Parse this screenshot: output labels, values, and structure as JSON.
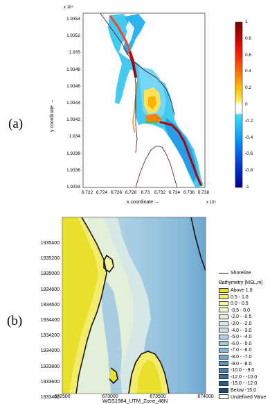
{
  "panel_a": {
    "label": "(a)",
    "exp_top": "x 10⁵",
    "exp_bottom": "x 10⁵",
    "xlabel": "x coordinate →",
    "ylabel": "y coordinate →",
    "yticks": [
      "1.9354",
      "1.9352",
      "1.935",
      "1.9348",
      "1.9346",
      "1.9344",
      "1.9342",
      "1.934",
      "1.9338",
      "1.9336",
      "1.9334"
    ],
    "xticks": [
      "6.722",
      "6.724",
      "6.726",
      "6.728",
      "6.73",
      "6.732",
      "6.734",
      "6.736",
      "6.738"
    ],
    "colorbar_ticks": [
      "1",
      "0.8",
      "0.6",
      "0.4",
      "0.2",
      "0",
      "-0.2",
      "-0.4",
      "-0.6",
      "-0.8",
      "-1"
    ]
  },
  "panel_b": {
    "label": "(b)",
    "yticks": [
      "1935400",
      "1935200",
      "1935000",
      "1934800",
      "1934600",
      "1934400",
      "1934200",
      "1934000",
      "1933800",
      "1933600",
      "1933400"
    ],
    "xticks": [
      "672500",
      "673000",
      "673500",
      "674000"
    ],
    "xlabel": "WGS1984_UTM_Zone_48N",
    "legend": {
      "shoreline": "Shoreline",
      "title": "Bathymetry [MSL,m]",
      "items": [
        {
          "label": "Above   1.0",
          "color": "#e8e02a"
        },
        {
          "label": "0.5 -   1.0",
          "color": "#f2ec6a"
        },
        {
          "label": "0.0 -   0.5",
          "color": "#f6f2a0"
        },
        {
          "label": "-0.5 -   0.0",
          "color": "#f3f3c8"
        },
        {
          "label": "-2.0 -  -0.5",
          "color": "#e4efd9"
        },
        {
          "label": "-3.0 -  -2.0",
          "color": "#d6e8e6"
        },
        {
          "label": "-4.0 -  -3.0",
          "color": "#c6dfe8"
        },
        {
          "label": "-5.0 -  -4.0",
          "color": "#b4d4e6"
        },
        {
          "label": "-6.0 -  -5.0",
          "color": "#a0c7e0"
        },
        {
          "label": "-7.0 -  -6.0",
          "color": "#8ab9d8"
        },
        {
          "label": "-8.0 -  -7.0",
          "color": "#72a8cc"
        },
        {
          "label": "-9.0 -  -8.0",
          "color": "#5a96bf"
        },
        {
          "label": "-10.0 -  -9.0",
          "color": "#4584b2"
        },
        {
          "label": "-12.0 - -10.0",
          "color": "#3272a4"
        },
        {
          "label": "-15.0 - -12.0",
          "color": "#215f93"
        },
        {
          "label": "Below -15.0",
          "color": "#134a7c"
        },
        {
          "label": "Undefined Value",
          "color": "#ffffff"
        }
      ]
    }
  }
}
